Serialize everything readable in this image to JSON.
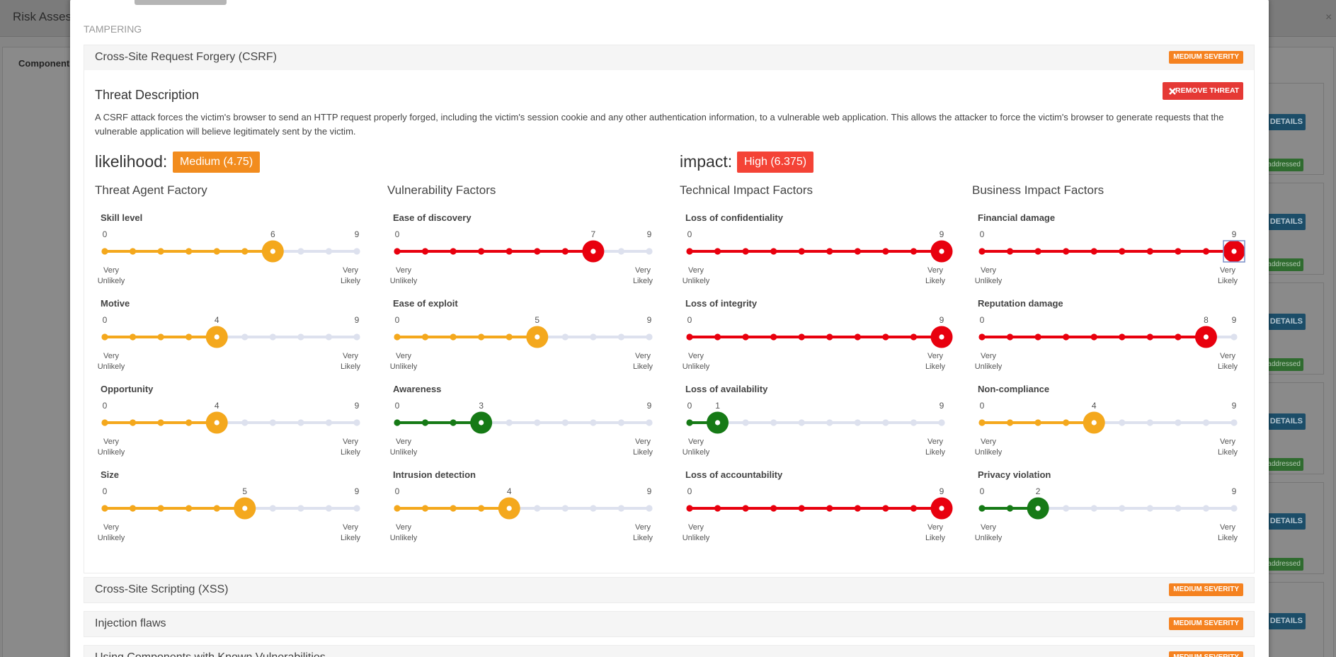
{
  "background": {
    "title": "Risk Assess",
    "column_header": "Component",
    "close": "×",
    "details_buttons": [
      "DETAILS",
      "DETAILS",
      "DETAILS",
      "DETAILS",
      "DETAILS",
      "DETAILS"
    ],
    "status_badges": [
      "addressed",
      "addressed",
      "addressed",
      "addressed",
      "addressed"
    ]
  },
  "modal": {
    "category": "TAMPERING",
    "threats": [
      {
        "title": "Cross-Site Request Forgery (CSRF)",
        "severity": "MEDIUM SEVERITY",
        "details": {
          "heading": "Threat Description",
          "remove_button": "REMOVE THREAT",
          "description": "A CSRF attack forces the victim's browser to send an HTTP request properly forged, including the victim's session cookie and any other authentication information, to a vulnerable web application. This allows the attacker to force the victim's browser to generate requests that the vulnerable application will believe legitimately sent by the victim.",
          "likelihood": {
            "label": "likelihood:",
            "value": "Medium (4.75)"
          },
          "impact": {
            "label": "impact:",
            "value": "High (6.375)"
          },
          "scale_labels": {
            "low": "Very Unlikely",
            "high": "Very Likely"
          },
          "factor_groups": [
            {
              "title": "Threat Agent Factory",
              "factors": [
                {
                  "name": "Skill level",
                  "min": 0,
                  "max": 9,
                  "value": 6
                },
                {
                  "name": "Motive",
                  "min": 0,
                  "max": 9,
                  "value": 4
                },
                {
                  "name": "Opportunity",
                  "min": 0,
                  "max": 9,
                  "value": 4
                },
                {
                  "name": "Size",
                  "min": 0,
                  "max": 9,
                  "value": 5
                }
              ]
            },
            {
              "title": "Vulnerability Factors",
              "factors": [
                {
                  "name": "Ease of discovery",
                  "min": 0,
                  "max": 9,
                  "value": 7
                },
                {
                  "name": "Ease of exploit",
                  "min": 0,
                  "max": 9,
                  "value": 5
                },
                {
                  "name": "Awareness",
                  "min": 0,
                  "max": 9,
                  "value": 3
                },
                {
                  "name": "Intrusion detection",
                  "min": 0,
                  "max": 9,
                  "value": 4
                }
              ]
            },
            {
              "title": "Technical Impact Factors",
              "factors": [
                {
                  "name": "Loss of confidentiality",
                  "min": 0,
                  "max": 9,
                  "value": 9
                },
                {
                  "name": "Loss of integrity",
                  "min": 0,
                  "max": 9,
                  "value": 9
                },
                {
                  "name": "Loss of availability",
                  "min": 0,
                  "max": 9,
                  "value": 1
                },
                {
                  "name": "Loss of accountability",
                  "min": 0,
                  "max": 9,
                  "value": 9
                }
              ]
            },
            {
              "title": "Business Impact Factors",
              "factors": [
                {
                  "name": "Financial damage",
                  "min": 0,
                  "max": 9,
                  "value": 9
                },
                {
                  "name": "Reputation damage",
                  "min": 0,
                  "max": 9,
                  "value": 8
                },
                {
                  "name": "Non-compliance",
                  "min": 0,
                  "max": 9,
                  "value": 4
                },
                {
                  "name": "Privacy violation",
                  "min": 0,
                  "max": 9,
                  "value": 2
                }
              ]
            }
          ]
        }
      },
      {
        "title": "Cross-Site Scripting (XSS)",
        "severity": "MEDIUM SEVERITY"
      },
      {
        "title": "Injection flaws",
        "severity": "MEDIUM SEVERITY"
      },
      {
        "title": "Using Components with Known Vulnerabilities",
        "severity": "MEDIUM SEVERITY"
      }
    ]
  }
}
